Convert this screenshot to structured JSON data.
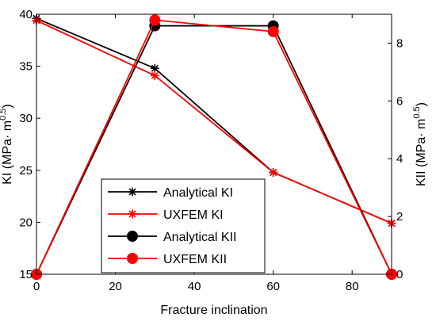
{
  "chart_data": {
    "type": "line",
    "xlabel": "Fracture inclination",
    "ylabel_left": {
      "base": "KI (MPa· m",
      "sup": "0.5",
      "end": ")"
    },
    "ylabel_right": {
      "base": "KII (MPa· m",
      "sup": "0.5",
      "end": ")"
    },
    "xlim": [
      0,
      90
    ],
    "ylim_left": [
      15,
      40
    ],
    "ylim_right": [
      0,
      9
    ],
    "xticks": [
      0,
      20,
      40,
      60,
      80
    ],
    "yticks_left": [
      15,
      20,
      25,
      30,
      35,
      40
    ],
    "yticks_right": [
      0,
      2,
      4,
      6,
      8
    ],
    "grid": false,
    "legend_position": "lower-left",
    "series": [
      {
        "name": "Analytical KI",
        "axis": "left",
        "color": "#000000",
        "marker": "star",
        "x": [
          0,
          30,
          60,
          90
        ],
        "y": [
          39.6,
          34.8,
          24.8,
          19.9
        ]
      },
      {
        "name": "UXFEM KI",
        "axis": "left",
        "color": "#ff0000",
        "marker": "star",
        "x": [
          0,
          30,
          60,
          90
        ],
        "y": [
          39.4,
          34.1,
          24.8,
          19.9
        ]
      },
      {
        "name": "Analytical KII",
        "axis": "right",
        "color": "#000000",
        "marker": "circle",
        "x": [
          0,
          30,
          60,
          90
        ],
        "y": [
          0,
          8.6,
          8.6,
          0
        ]
      },
      {
        "name": "UXFEM KII",
        "axis": "right",
        "color": "#ff0000",
        "marker": "circle",
        "x": [
          0,
          30,
          60,
          90
        ],
        "y": [
          0,
          8.8,
          8.4,
          0
        ]
      }
    ]
  }
}
